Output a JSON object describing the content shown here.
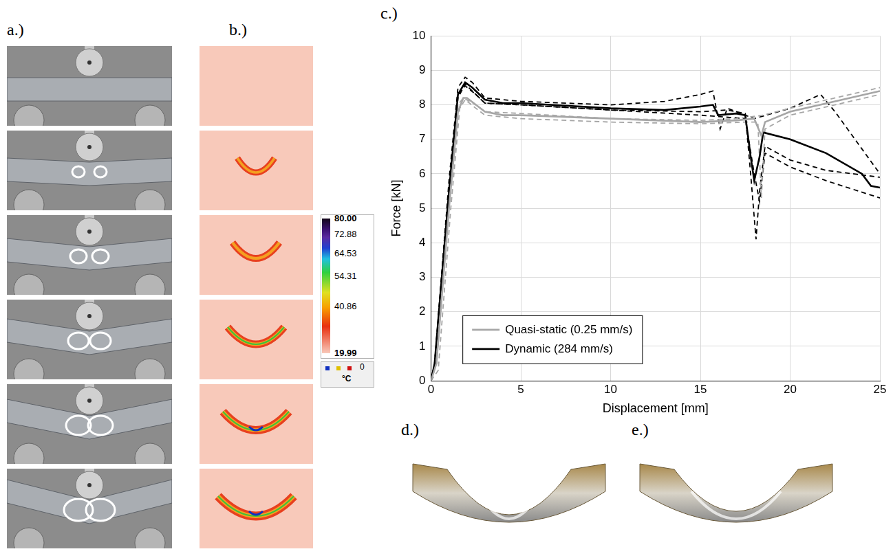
{
  "panel_labels": {
    "a": "a.)",
    "b": "b.)",
    "c": "c.)",
    "d": "d.)",
    "e": "e.)"
  },
  "colorbar": {
    "range": [
      19.99,
      80
    ],
    "ticks": [
      {
        "value": 80,
        "label": "80.00"
      },
      {
        "value": 72.88,
        "label": "72.88"
      },
      {
        "value": 64.53,
        "label": "64.53"
      },
      {
        "value": 54.31,
        "label": "54.31"
      },
      {
        "value": 40.86,
        "label": "40.86"
      },
      {
        "value": 19.99,
        "label": "19.99"
      }
    ],
    "zero_label": "0",
    "unit": "°C"
  },
  "chart_data": {
    "type": "line",
    "x_label": "Displacement [mm]",
    "y_label": "Force [kN]",
    "xlim": [
      0,
      25
    ],
    "xticks": [
      0,
      5,
      10,
      15,
      20,
      25
    ],
    "ylim": [
      0,
      10
    ],
    "yticks": [
      0,
      1,
      2,
      3,
      4,
      5,
      6,
      7,
      8,
      9,
      10
    ],
    "grid": true,
    "legend": "lower left",
    "series": [
      {
        "name": "Quasi-static (0.25 mm/s)",
        "color": "#a6a6a6",
        "line_style": "solid",
        "x": [
          0,
          0.3,
          1,
          1.5,
          1.8,
          2,
          2.5,
          3,
          4,
          5,
          7.5,
          10,
          12.5,
          15,
          17,
          18,
          18.4,
          18.6,
          20,
          22.5,
          25
        ],
        "values": [
          0,
          0.5,
          5,
          7.8,
          8.2,
          8.2,
          8.0,
          7.8,
          7.7,
          7.7,
          7.65,
          7.6,
          7.55,
          7.5,
          7.55,
          7.6,
          7.1,
          7.5,
          7.8,
          8.1,
          8.4
        ]
      },
      {
        "color": "#a6a6a6",
        "line_style": "dashed",
        "x": [
          0,
          0.4,
          1.1,
          1.6,
          1.9,
          2.5,
          3,
          5,
          10,
          15,
          17.5,
          18.2,
          18.4,
          18.6,
          20,
          25
        ],
        "values": [
          0,
          0.3,
          5,
          7.9,
          8.15,
          7.9,
          7.7,
          7.6,
          7.5,
          7.45,
          7.5,
          7.5,
          5.3,
          7.3,
          7.7,
          8.3
        ]
      },
      {
        "color": "#a6a6a6",
        "line_style": "dashed",
        "x": [
          0,
          0.3,
          1,
          1.5,
          1.8,
          2.5,
          3,
          5,
          10,
          15,
          17,
          18.5,
          20,
          25
        ],
        "values": [
          0,
          0.5,
          5.2,
          8.0,
          8.2,
          8.0,
          7.8,
          7.75,
          7.6,
          7.55,
          7.6,
          7.7,
          7.9,
          8.5
        ]
      },
      {
        "name": "Dynamic (284 mm/s)",
        "color": "#000000",
        "line_style": "solid",
        "x": [
          0,
          0.2,
          1,
          1.5,
          1.9,
          2.3,
          3,
          4,
          5,
          10,
          13,
          15,
          15.7,
          16,
          17,
          17.5,
          17.8,
          18,
          18.3,
          18.5,
          20,
          22,
          24,
          24.5,
          25
        ],
        "values": [
          0,
          0.5,
          5.5,
          8.3,
          8.65,
          8.5,
          8.15,
          8.05,
          8.05,
          7.9,
          7.85,
          7.95,
          8.0,
          7.7,
          7.75,
          7.7,
          6.5,
          5.8,
          6.5,
          7.2,
          7.0,
          6.6,
          6.0,
          5.65,
          5.6
        ]
      },
      {
        "color": "#000000",
        "line_style": "dashed",
        "x": [
          0,
          0.2,
          1,
          1.5,
          1.9,
          2.3,
          3,
          5,
          10,
          13,
          15,
          15.7,
          16.1,
          16.5,
          17.5,
          18,
          20,
          21.7,
          22.5,
          25
        ],
        "values": [
          0,
          0.5,
          5.8,
          8.5,
          8.8,
          8.65,
          8.2,
          8.1,
          8.0,
          8.1,
          8.3,
          8.4,
          7.3,
          7.9,
          7.7,
          7.6,
          7.9,
          8.3,
          7.8,
          6.0
        ]
      },
      {
        "color": "#000000",
        "line_style": "dashed",
        "x": [
          0,
          0.2,
          1,
          1.5,
          1.9,
          2.5,
          3,
          5,
          10,
          15,
          16.5,
          17.5,
          17.8,
          18.1,
          18.3,
          18.6,
          20,
          22,
          25
        ],
        "values": [
          0,
          0.5,
          5.6,
          8.3,
          8.55,
          8.3,
          8.05,
          8.0,
          7.85,
          7.8,
          7.85,
          7.75,
          6.0,
          4.1,
          5.5,
          6.8,
          6.4,
          6.1,
          5.9
        ]
      },
      {
        "color": "#000000",
        "line_style": "dashed",
        "x": [
          0,
          0.3,
          1,
          1.5,
          1.9,
          2.5,
          3,
          5,
          10,
          15,
          17.5,
          18,
          18.3,
          18.6,
          20,
          22,
          25
        ],
        "values": [
          0,
          0.5,
          5.4,
          8.2,
          8.6,
          8.3,
          8.05,
          8.0,
          7.85,
          7.7,
          7.6,
          6.0,
          5.2,
          6.6,
          6.2,
          5.8,
          5.3
        ]
      }
    ]
  }
}
